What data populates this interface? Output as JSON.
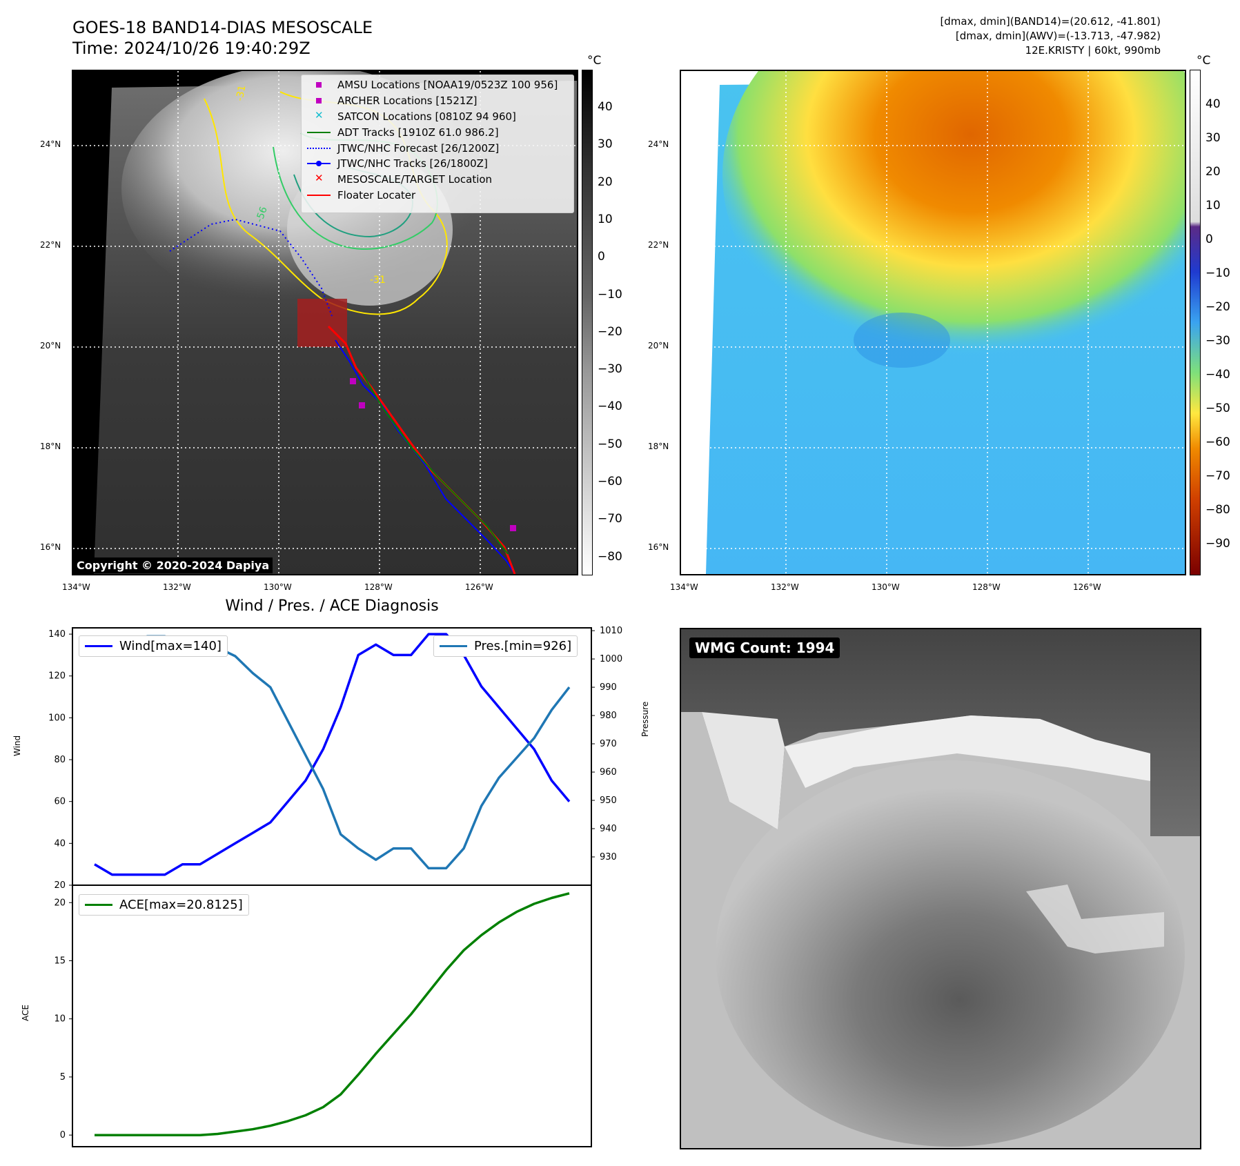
{
  "header": {
    "title": "GOES-18 BAND14-DIAS MESOSCALE",
    "time": "Time: 2024/10/26 19:40:29Z",
    "band14_range": "[dmax, dmin](BAND14)=(20.612, -41.801)",
    "awv_range": "[dmax, dmin](AWV)=(-13.713, -47.982)",
    "storm_info": "12E.KRISTY | 60kt, 990mb"
  },
  "map_left": {
    "copyright": "Copyright © 2020-2024 Dapiya",
    "unit": "°C",
    "lat_ticks": [
      "24°N",
      "22°N",
      "20°N",
      "18°N",
      "16°N"
    ],
    "lon_ticks": [
      "134°W",
      "132°W",
      "130°W",
      "128°W",
      "126°W"
    ],
    "colorbar_ticks": [
      "40",
      "30",
      "20",
      "10",
      "0",
      "−10",
      "−20",
      "−30",
      "−40",
      "−50",
      "−60",
      "−70",
      "−80"
    ],
    "contour_labels": [
      "-31",
      "-56",
      "-31"
    ],
    "legend": [
      {
        "label": "AMSU Locations [NOAA19/0523Z 100 956]",
        "symbol": "square",
        "color": "#c000c0"
      },
      {
        "label": "ARCHER Locations [1521Z]",
        "symbol": "square",
        "color": "#c000c0"
      },
      {
        "label": "SATCON Locations [0810Z 94 960]",
        "symbol": "x",
        "color": "#17becf"
      },
      {
        "label": "ADT Tracks [1910Z 61.0 986.2]",
        "symbol": "line",
        "color": "#008000"
      },
      {
        "label": "JTWC/NHC Forecast [26/1200Z]",
        "symbol": "dotted",
        "color": "#0000ff"
      },
      {
        "label": "JTWC/NHC Tracks [26/1800Z]",
        "symbol": "line-dot",
        "color": "#0000ff"
      },
      {
        "label": "MESOSCALE/TARGET Location",
        "symbol": "x",
        "color": "#ff0000"
      },
      {
        "label": "Floater Locater",
        "symbol": "line",
        "color": "#ff0000"
      }
    ]
  },
  "map_right": {
    "unit": "°C",
    "lat_ticks": [
      "24°N",
      "22°N",
      "20°N",
      "18°N",
      "16°N"
    ],
    "lon_ticks": [
      "134°W",
      "132°W",
      "130°W",
      "128°W",
      "126°W"
    ],
    "colorbar_ticks": [
      "40",
      "30",
      "20",
      "10",
      "0",
      "−10",
      "−20",
      "−30",
      "−40",
      "−50",
      "−60",
      "−70",
      "−80",
      "−90"
    ]
  },
  "wmg": {
    "label": "WMG Count: 1994"
  },
  "chart_data": [
    {
      "type": "line",
      "title": "Wind / Pres. / ACE Diagnosis",
      "ylabel": "Wind",
      "y2label": "Pressure",
      "ylim": [
        20,
        143
      ],
      "y2lim": [
        920,
        1011
      ],
      "yticks": [
        20,
        40,
        60,
        80,
        100,
        120,
        140
      ],
      "y2ticks": [
        930,
        940,
        950,
        960,
        970,
        980,
        990,
        1000,
        1010
      ],
      "series": [
        {
          "name": "Wind[max=140]",
          "axis": "left",
          "color": "#0000ff",
          "values": [
            30,
            25,
            25,
            25,
            25,
            30,
            30,
            35,
            40,
            45,
            50,
            60,
            70,
            85,
            105,
            130,
            135,
            130,
            130,
            140,
            140,
            130,
            115,
            105,
            95,
            85,
            70,
            60
          ]
        },
        {
          "name": "Pres.[min=926]",
          "axis": "right",
          "color": "#1f77b4",
          "values": [
            1006,
            1006,
            1006,
            1008,
            1008,
            1006,
            1006,
            1004,
            1001,
            995,
            990,
            978,
            966,
            954,
            938,
            933,
            929,
            933,
            933,
            926,
            926,
            933,
            948,
            958,
            965,
            972,
            982,
            990
          ]
        }
      ]
    },
    {
      "type": "line",
      "ylabel": "ACE",
      "ylim": [
        -1,
        21.5
      ],
      "yticks": [
        0,
        5,
        10,
        15,
        20
      ],
      "series": [
        {
          "name": "ACE[max=20.8125]",
          "color": "#008000",
          "values": [
            0,
            0,
            0,
            0,
            0,
            0,
            0,
            0.1,
            0.3,
            0.5,
            0.8,
            1.2,
            1.7,
            2.4,
            3.5,
            5.2,
            7.0,
            8.7,
            10.4,
            12.3,
            14.2,
            15.9,
            17.2,
            18.3,
            19.2,
            19.9,
            20.4,
            20.8
          ]
        }
      ]
    }
  ]
}
